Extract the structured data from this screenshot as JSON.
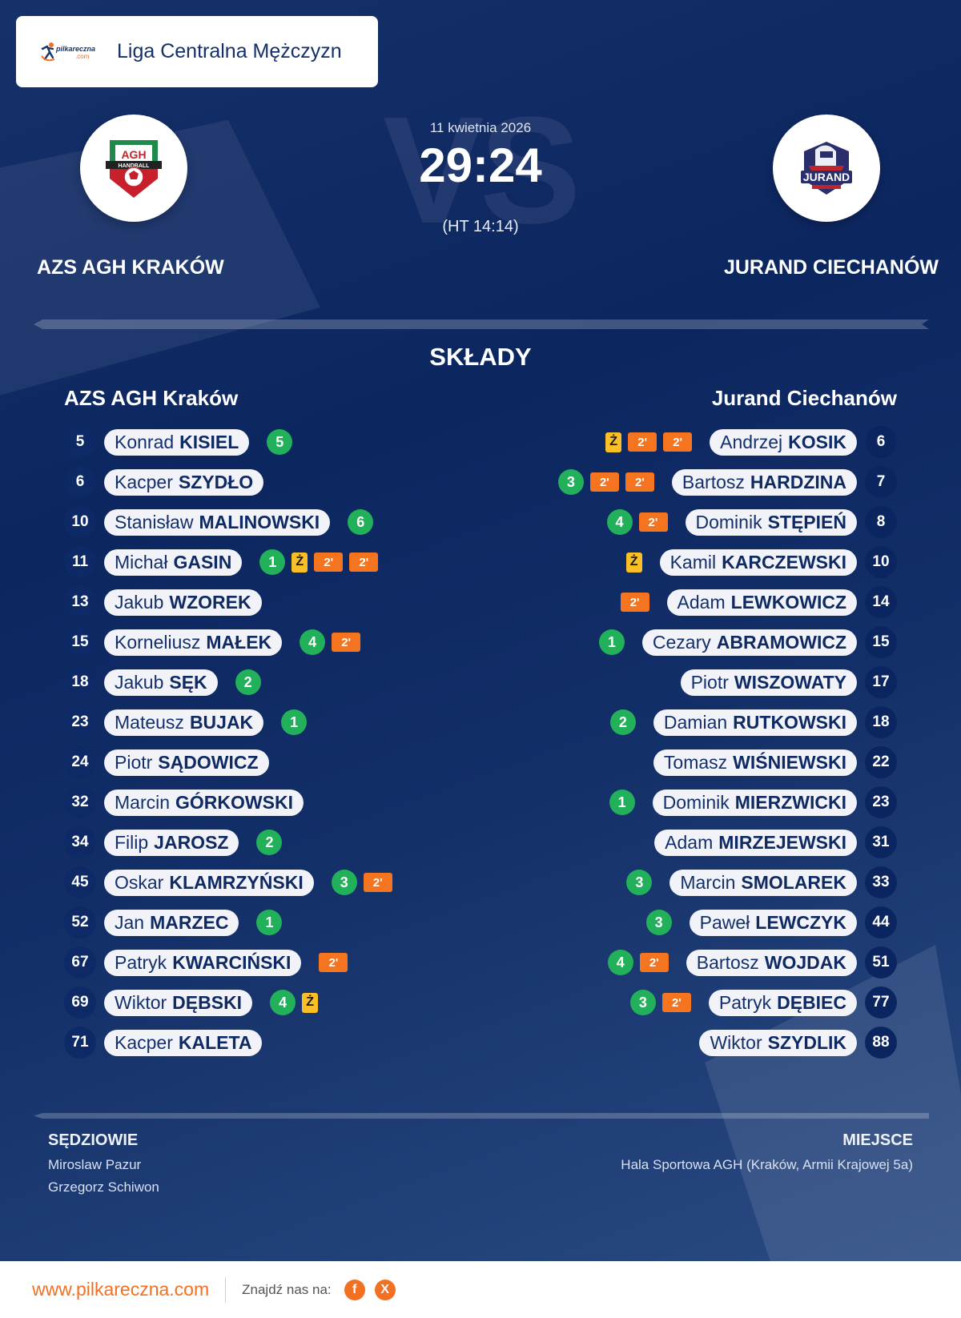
{
  "header": {
    "brand_logo": "pilkareczna-logo",
    "brand_text": "pilkareczna",
    "brand_suffix": ".com",
    "league": "Liga Centralna Mężczyzn"
  },
  "match": {
    "date": "11 kwietnia 2026",
    "score": "29:24",
    "halftime": "(HT 14:14)",
    "vs_watermark": "VS",
    "home_team": "AZS AGH KRAKÓW",
    "away_team": "JURAND CIECHANÓW",
    "home_crest": "agh-handball-crest",
    "away_crest": "jurand-crest"
  },
  "lineups": {
    "title": "SKŁADY",
    "home": {
      "name": "AZS AGH Kraków",
      "players": [
        {
          "number": "5",
          "first": "Konrad",
          "last": "KISIEL",
          "goals": "5",
          "yellow": false,
          "suspensions": []
        },
        {
          "number": "6",
          "first": "Kacper",
          "last": "SZYDŁO",
          "goals": "",
          "yellow": false,
          "suspensions": []
        },
        {
          "number": "10",
          "first": "Stanisław",
          "last": "MALINOWSKI",
          "goals": "6",
          "yellow": false,
          "suspensions": []
        },
        {
          "number": "11",
          "first": "Michał",
          "last": "GASIN",
          "goals": "1",
          "yellow": true,
          "suspensions": [
            "2'",
            "2'"
          ]
        },
        {
          "number": "13",
          "first": "Jakub",
          "last": "WZOREK",
          "goals": "",
          "yellow": false,
          "suspensions": []
        },
        {
          "number": "15",
          "first": "Korneliusz",
          "last": "MAŁEK",
          "goals": "4",
          "yellow": false,
          "suspensions": [
            "2'"
          ]
        },
        {
          "number": "18",
          "first": "Jakub",
          "last": "SĘK",
          "goals": "2",
          "yellow": false,
          "suspensions": []
        },
        {
          "number": "23",
          "first": "Mateusz",
          "last": "BUJAK",
          "goals": "1",
          "yellow": false,
          "suspensions": []
        },
        {
          "number": "24",
          "first": "Piotr",
          "last": "SĄDOWICZ",
          "goals": "",
          "yellow": false,
          "suspensions": []
        },
        {
          "number": "32",
          "first": "Marcin",
          "last": "GÓRKOWSKI",
          "goals": "",
          "yellow": false,
          "suspensions": []
        },
        {
          "number": "34",
          "first": "Filip",
          "last": "JAROSZ",
          "goals": "2",
          "yellow": false,
          "suspensions": []
        },
        {
          "number": "45",
          "first": "Oskar",
          "last": "KLAMRZYŃSKI",
          "goals": "3",
          "yellow": false,
          "suspensions": [
            "2'"
          ]
        },
        {
          "number": "52",
          "first": "Jan",
          "last": "MARZEC",
          "goals": "1",
          "yellow": false,
          "suspensions": []
        },
        {
          "number": "67",
          "first": "Patryk",
          "last": "KWARCIŃSKI",
          "goals": "",
          "yellow": false,
          "suspensions": [
            "2'"
          ]
        },
        {
          "number": "69",
          "first": "Wiktor",
          "last": "DĘBSKI",
          "goals": "4",
          "yellow": true,
          "suspensions": []
        },
        {
          "number": "71",
          "first": "Kacper",
          "last": "KALETA",
          "goals": "",
          "yellow": false,
          "suspensions": []
        }
      ]
    },
    "away": {
      "name": "Jurand Ciechanów",
      "players": [
        {
          "number": "6",
          "first": "Andrzej",
          "last": "KOSIK",
          "goals": "",
          "yellow": true,
          "suspensions": [
            "2'",
            "2'"
          ]
        },
        {
          "number": "7",
          "first": "Bartosz",
          "last": "HARDZINA",
          "goals": "3",
          "yellow": false,
          "suspensions": [
            "2'",
            "2'"
          ]
        },
        {
          "number": "8",
          "first": "Dominik",
          "last": "STĘPIEŃ",
          "goals": "4",
          "yellow": false,
          "suspensions": [
            "2'"
          ]
        },
        {
          "number": "10",
          "first": "Kamil",
          "last": "KARCZEWSKI",
          "goals": "",
          "yellow": true,
          "suspensions": []
        },
        {
          "number": "14",
          "first": "Adam",
          "last": "LEWKOWICZ",
          "goals": "",
          "yellow": false,
          "suspensions": [
            "2'"
          ]
        },
        {
          "number": "15",
          "first": "Cezary",
          "last": "ABRAMOWICZ",
          "goals": "1",
          "yellow": false,
          "suspensions": []
        },
        {
          "number": "17",
          "first": "Piotr",
          "last": "WISZOWATY",
          "goals": "",
          "yellow": false,
          "suspensions": []
        },
        {
          "number": "18",
          "first": "Damian",
          "last": "RUTKOWSKI",
          "goals": "2",
          "yellow": false,
          "suspensions": []
        },
        {
          "number": "22",
          "first": "Tomasz",
          "last": "WIŚNIEWSKI",
          "goals": "",
          "yellow": false,
          "suspensions": []
        },
        {
          "number": "23",
          "first": "Dominik",
          "last": "MIERZWICKI",
          "goals": "1",
          "yellow": false,
          "suspensions": []
        },
        {
          "number": "31",
          "first": "Adam",
          "last": "MIRZEJEWSKI",
          "goals": "",
          "yellow": false,
          "suspensions": []
        },
        {
          "number": "33",
          "first": "Marcin",
          "last": "SMOLAREK",
          "goals": "3",
          "yellow": false,
          "suspensions": []
        },
        {
          "number": "44",
          "first": "Paweł",
          "last": "LEWCZYK",
          "goals": "3",
          "yellow": false,
          "suspensions": []
        },
        {
          "number": "51",
          "first": "Bartosz",
          "last": "WOJDAK",
          "goals": "4",
          "yellow": false,
          "suspensions": [
            "2'"
          ]
        },
        {
          "number": "77",
          "first": "Patryk",
          "last": "DĘBIEC",
          "goals": "3",
          "yellow": false,
          "suspensions": [
            "2'"
          ]
        },
        {
          "number": "88",
          "first": "Wiktor",
          "last": "SZYDLIK",
          "goals": "",
          "yellow": false,
          "suspensions": []
        }
      ]
    },
    "yellow_card_label": "Ż"
  },
  "officials": {
    "label": "SĘDZIOWIE",
    "names": [
      "Miroslaw Pazur",
      "Grzegorz Schiwon"
    ]
  },
  "venue": {
    "label": "MIEJSCE",
    "text": "Hala Sportowa AGH (Kraków, Armii Krajowej 5a)"
  },
  "footer": {
    "site": "www.pilkareczna.com",
    "find_us": "Znajdź nas na:",
    "social": [
      {
        "name": "facebook",
        "glyph": "f"
      },
      {
        "name": "x",
        "glyph": "X"
      }
    ]
  },
  "colors": {
    "background": "#0c2660",
    "accent_orange": "#f37021",
    "goal_green": "#22b05a",
    "yellow_card": "#f8bf26",
    "suspension": "#f57420",
    "pill_bg": "#f1f3f8",
    "text_navy": "#14306a"
  }
}
